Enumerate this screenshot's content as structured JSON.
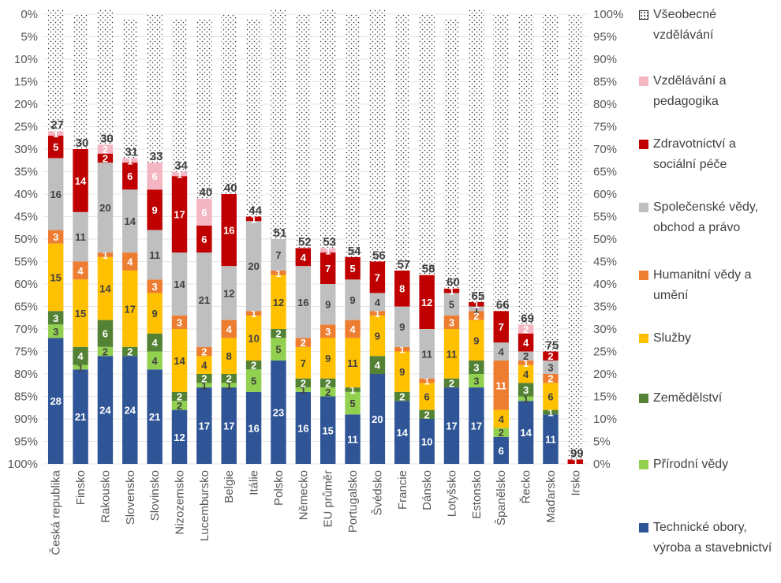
{
  "chart_data": {
    "type": "bar",
    "stacked": true,
    "orientation": "vertical",
    "left_axis_ticks": [
      "0%",
      "5%",
      "10%",
      "15%",
      "20%",
      "25%",
      "30%",
      "35%",
      "40%",
      "45%",
      "50%",
      "55%",
      "60%",
      "65%",
      "70%",
      "75%",
      "80%",
      "85%",
      "90%",
      "95%",
      "100%"
    ],
    "right_axis_ticks": [
      "100%",
      "95%",
      "90%",
      "85%",
      "80%",
      "75%",
      "70%",
      "65%",
      "60%",
      "55%",
      "50%",
      "45%",
      "40%",
      "35%",
      "30%",
      "25%",
      "20%",
      "15%",
      "10%",
      "5%",
      "0%"
    ],
    "categories": [
      "Česká republika",
      "Finsko",
      "Rakousko",
      "Slovensko",
      "Slovinsko",
      "Nizozemsko",
      "Lucembursko",
      "Belgie",
      "Itálie",
      "Polsko",
      "Německo",
      "EU průměr",
      "Portugalsko",
      "Švédsko",
      "Francie",
      "Dánsko",
      "Lotyšsko",
      "Estonsko",
      "Španělsko",
      "Řecko",
      "Maďarsko",
      "Irsko"
    ],
    "series": [
      {
        "name": "Technické obory, výroba a stavebnictví",
        "color": "#2F5597",
        "label_color": "#ffffff",
        "values": [
          28,
          21,
          24,
          24,
          21,
          12,
          17,
          17,
          16,
          23,
          16,
          15,
          11,
          20,
          14,
          10,
          17,
          17,
          6,
          14,
          11,
          0
        ]
      },
      {
        "name": "Přírodní vědy",
        "color": "#92D050",
        "label_color": "#404040",
        "values": [
          3,
          1,
          2,
          0,
          4,
          2,
          1,
          1,
          5,
          5,
          1,
          2,
          5,
          0,
          0,
          0,
          0,
          3,
          2,
          1,
          0,
          0
        ]
      },
      {
        "name": "Zemědělství",
        "color": "#548235",
        "label_color": "#ffffff",
        "values": [
          3,
          4,
          6,
          2,
          4,
          2,
          2,
          2,
          2,
          2,
          2,
          2,
          1,
          4,
          2,
          2,
          2,
          3,
          0,
          3,
          1,
          0
        ]
      },
      {
        "name": "Služby",
        "color": "#FFC000",
        "label_color": "#404040",
        "values": [
          15,
          15,
          14,
          17,
          9,
          14,
          4,
          8,
          10,
          12,
          7,
          9,
          11,
          9,
          9,
          6,
          11,
          9,
          4,
          4,
          6,
          0
        ]
      },
      {
        "name": "Humanitní vědy a umění",
        "color": "#ED7D31",
        "label_color": "#ffffff",
        "values": [
          3,
          4,
          1,
          4,
          3,
          3,
          2,
          4,
          1,
          1,
          2,
          3,
          4,
          1,
          1,
          1,
          3,
          2,
          11,
          1,
          2,
          0
        ]
      },
      {
        "name": "Společenské vědy, obchod a právo",
        "color": "#BFBFBF",
        "label_color": "#404040",
        "values": [
          16,
          11,
          20,
          14,
          11,
          14,
          21,
          12,
          20,
          7,
          16,
          9,
          9,
          4,
          9,
          11,
          5,
          1,
          4,
          2,
          3,
          0
        ]
      },
      {
        "name": "Zdravotnictví a sociální péče",
        "color": "#C00000",
        "label_color": "#ffffff",
        "values": [
          5,
          14,
          2,
          6,
          9,
          17,
          6,
          16,
          1,
          0,
          4,
          7,
          5,
          7,
          8,
          12,
          1,
          1,
          7,
          4,
          2,
          1
        ]
      },
      {
        "name": "Vzdělávání a pedagogika",
        "color": "#F4B6C2",
        "label_color": "#ffffff",
        "values": [
          1,
          0,
          2,
          1,
          6,
          1,
          6,
          0,
          0,
          0,
          0,
          1,
          0,
          0,
          0,
          0,
          0,
          0,
          0,
          2,
          0,
          0
        ]
      },
      {
        "name": "Všeobecné vzdělávání",
        "color": "#ffffff",
        "label_color": "#404040",
        "pattern": "dotted",
        "values": [
          27,
          30,
          30,
          31,
          33,
          34,
          40,
          40,
          44,
          51,
          52,
          53,
          54,
          56,
          57,
          58,
          60,
          65,
          66,
          69,
          75,
          99
        ]
      }
    ],
    "legend": [
      "Všeobecné vzdělávání",
      "Vzdělávání a pedagogika",
      "Zdravotnictví a sociální péče",
      "Společenské vědy, obchod a právo",
      "Humanitní vědy a umění",
      "Služby",
      "Zemědělství",
      "Přírodní vědy",
      "Technické obory, výroba a stavebnictví"
    ],
    "ylim": [
      0,
      100
    ],
    "legend_position": "right"
  }
}
